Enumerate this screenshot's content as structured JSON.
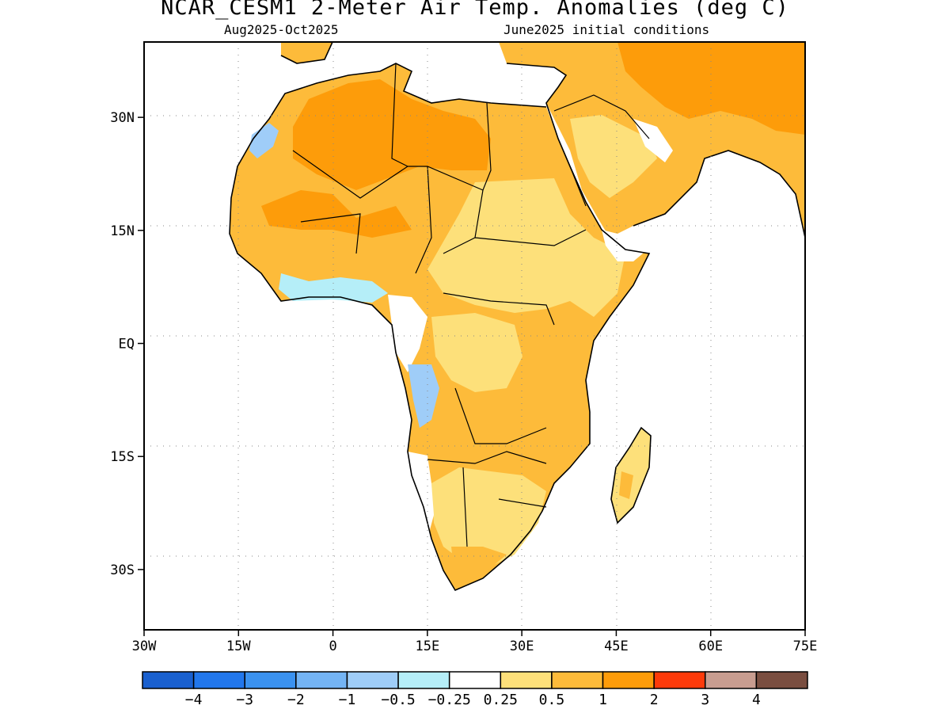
{
  "header": {
    "title": "NCAR_CESM1 2-Meter Air Temp. Anomalies (deg C)",
    "period": "Aug2025-Oct2025",
    "init": "June2025 initial conditions"
  },
  "map": {
    "lon_range": [
      -30,
      75
    ],
    "lat_range": [
      -38,
      40
    ],
    "lat_ticks": [
      {
        "value": 30,
        "label": "30N"
      },
      {
        "value": 15,
        "label": "15N"
      },
      {
        "value": 0,
        "label": "EQ"
      },
      {
        "value": -15,
        "label": "15S"
      },
      {
        "value": -30,
        "label": "30S"
      }
    ],
    "lon_ticks": [
      {
        "value": -30,
        "label": "30W"
      },
      {
        "value": -15,
        "label": "15W"
      },
      {
        "value": 0,
        "label": "0"
      },
      {
        "value": 15,
        "label": "15E"
      },
      {
        "value": 30,
        "label": "30E"
      },
      {
        "value": 45,
        "label": "45E"
      },
      {
        "value": 60,
        "label": "60E"
      },
      {
        "value": 75,
        "label": "75E"
      }
    ],
    "grid": true
  },
  "colorbar": {
    "colors": [
      "#1a60cf",
      "#2277ec",
      "#3b92f0",
      "#74b4f4",
      "#9fcdf8",
      "#b5eef8",
      "#ffffff",
      "#fde07a",
      "#fdbb3a",
      "#fd9c0a",
      "#fd3a0a",
      "#c89d90",
      "#7a4e40"
    ],
    "labels": [
      "-4",
      "-3",
      "-2",
      "-1",
      "-0.5",
      "-0.25",
      "0.25",
      "0.5",
      "1",
      "2",
      "3",
      "4"
    ]
  },
  "colors": {
    "land_white": "#ffffff",
    "anom_025_05": "#fde07a",
    "anom_05_1": "#fdbb3a",
    "anom_1_2": "#fd9c0a",
    "anom_neg_025": "#b5eef8",
    "anom_neg_05": "#9fcdf8"
  }
}
